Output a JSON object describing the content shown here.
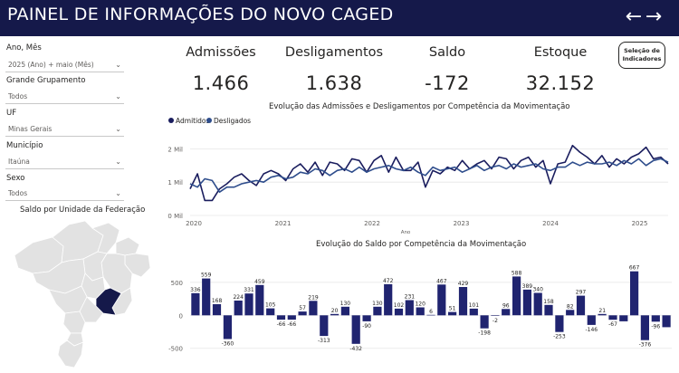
{
  "header": {
    "title": "PAINEL DE INFORMAÇÕES DO NOVO CAGED",
    "back_label": "←",
    "forward_label": "→"
  },
  "filters": [
    {
      "label": "Ano, Mês",
      "value": "2025 (Ano) + maio (Mês)"
    },
    {
      "label": "Grande Grupamento",
      "value": "Todos"
    },
    {
      "label": "UF",
      "value": "Minas Gerais"
    },
    {
      "label": "Município",
      "value": "Itaúna"
    },
    {
      "label": "Sexo",
      "value": "Todos"
    }
  ],
  "kpis": [
    {
      "label": "Admissões",
      "value": "1.466"
    },
    {
      "label": "Desligamentos",
      "value": "1.638"
    },
    {
      "label": "Saldo",
      "value": "-172"
    },
    {
      "label": "Estoque",
      "value": "32.152"
    }
  ],
  "selection_button": {
    "line1": "Seleção de",
    "line2": "Indicadores"
  },
  "map": {
    "title": "Saldo por Unidade da Federação",
    "highlight_color": "#15194a",
    "base_color": "#e0e0e0"
  },
  "colors": {
    "header_bg": "#15194a",
    "admitidos": "#1a1d5e",
    "desligados": "#2e4d8c",
    "bar": "#202470"
  },
  "chart_data": [
    {
      "type": "line",
      "title": "Evolução das Admissões e Desligamentos por Competência da Movimentação",
      "xlabel": "Ano",
      "ylabel": "",
      "x_ticks": [
        "2020",
        "2021",
        "2022",
        "2023",
        "2024",
        "2025"
      ],
      "y_ticks": [
        "0 Mil",
        "1 Mil",
        "2 Mil"
      ],
      "ylim": [
        0,
        2500
      ],
      "legend": "top-left",
      "grid": true,
      "series": [
        {
          "name": "Admitidos",
          "values": [
            800,
            1250,
            450,
            450,
            800,
            950,
            1150,
            1250,
            1050,
            900,
            1250,
            1350,
            1250,
            1050,
            1400,
            1550,
            1300,
            1600,
            1200,
            1600,
            1550,
            1350,
            1700,
            1650,
            1300,
            1650,
            1800,
            1300,
            1750,
            1350,
            1350,
            1600,
            850,
            1350,
            1250,
            1450,
            1350,
            1650,
            1400,
            1550,
            1650,
            1400,
            1750,
            1700,
            1400,
            1650,
            1750,
            1450,
            1650,
            950,
            1550,
            1600,
            2100,
            1900,
            1750,
            1550,
            1800,
            1450,
            1700,
            1550,
            1750,
            1850,
            2050,
            1700,
            1750,
            1550
          ]
        },
        {
          "name": "Desligados",
          "values": [
            950,
            850,
            1100,
            1050,
            700,
            850,
            850,
            950,
            1000,
            1050,
            1000,
            1150,
            1200,
            1100,
            1150,
            1300,
            1250,
            1400,
            1350,
            1200,
            1350,
            1400,
            1300,
            1450,
            1300,
            1400,
            1450,
            1500,
            1400,
            1350,
            1450,
            1300,
            1200,
            1450,
            1350,
            1400,
            1450,
            1300,
            1400,
            1500,
            1350,
            1450,
            1500,
            1400,
            1550,
            1450,
            1500,
            1550,
            1400,
            1350,
            1450,
            1450,
            1600,
            1500,
            1600,
            1550,
            1550,
            1600,
            1500,
            1650,
            1550,
            1700,
            1500,
            1650,
            1700,
            1600
          ]
        }
      ]
    },
    {
      "type": "bar",
      "title": "Evolução do Saldo por Competência da Movimentação",
      "y_ticks": [
        "500",
        "0",
        "-500"
      ],
      "ylim": [
        -600,
        800
      ],
      "grid": true,
      "values": [
        336,
        559,
        168,
        -360,
        224,
        331,
        459,
        105,
        -66,
        -66,
        57,
        219,
        -313,
        20,
        130,
        -432,
        -90,
        130,
        472,
        102,
        231,
        120,
        6,
        467,
        51,
        429,
        101,
        -198,
        -2,
        96,
        588,
        389,
        340,
        158,
        -253,
        82,
        297,
        -146,
        21,
        -67,
        -90,
        667,
        -376,
        -96,
        -180
      ],
      "labels": [
        "336",
        "559",
        "168",
        "-360",
        "224",
        "331",
        "459",
        "105",
        "-66",
        "-66",
        "57",
        "219",
        "-313",
        "20",
        "130",
        "-432",
        "-90",
        "130",
        "472",
        "102",
        "231",
        "120",
        "6",
        "467",
        "51",
        "429",
        "101",
        "-198",
        "-2",
        "96",
        "588",
        "389",
        "340",
        "158",
        "-253",
        "82",
        "297",
        "-146",
        "21",
        "-67",
        "",
        "667",
        "-376",
        "-96",
        ""
      ]
    }
  ]
}
